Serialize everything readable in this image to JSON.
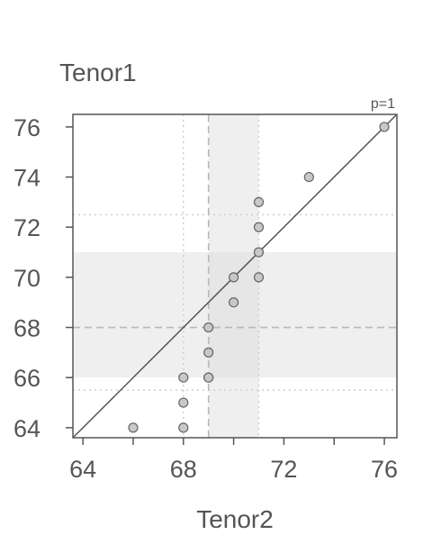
{
  "chart_data": {
    "type": "scatter",
    "title": "",
    "xlabel": "Tenor2",
    "ylabel": "Tenor1",
    "annotation": "p=1",
    "xlim": [
      63.6,
      76.5
    ],
    "ylim": [
      63.6,
      76.5
    ],
    "x_ticks": [
      64,
      68,
      72,
      76
    ],
    "x_minor_ticks": [
      66,
      70,
      74
    ],
    "y_ticks": [
      64,
      66,
      68,
      70,
      72,
      74,
      76
    ],
    "points": [
      {
        "x": 66,
        "y": 64
      },
      {
        "x": 68,
        "y": 64
      },
      {
        "x": 68,
        "y": 65
      },
      {
        "x": 68,
        "y": 66
      },
      {
        "x": 69,
        "y": 66
      },
      {
        "x": 69,
        "y": 66
      },
      {
        "x": 69,
        "y": 67
      },
      {
        "x": 69,
        "y": 68
      },
      {
        "x": 70,
        "y": 69
      },
      {
        "x": 70,
        "y": 70
      },
      {
        "x": 71,
        "y": 70
      },
      {
        "x": 71,
        "y": 71
      },
      {
        "x": 71,
        "y": 72
      },
      {
        "x": 71,
        "y": 73
      },
      {
        "x": 73,
        "y": 74
      },
      {
        "x": 76,
        "y": 76
      }
    ],
    "identity_line": true,
    "x_band": {
      "from": 69,
      "to": 71
    },
    "y_band": {
      "from": 66,
      "to": 71
    },
    "x_median": 69,
    "y_median": 68,
    "x_dotted": [
      68,
      71
    ],
    "y_dotted": [
      65.5,
      72.5
    ],
    "colors": {
      "point_fill": "#c8c8c8",
      "point_stroke": "#666666",
      "band": "#efefef",
      "line": "#555555",
      "axis_text": "#555555"
    }
  }
}
